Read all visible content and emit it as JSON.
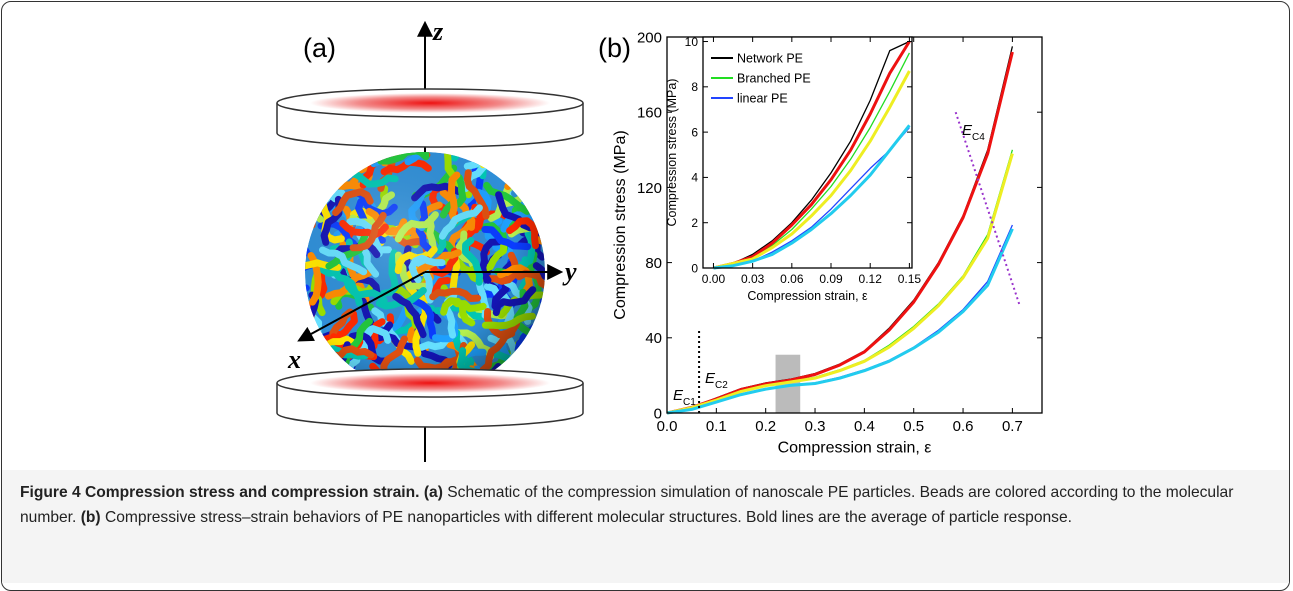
{
  "figure": {
    "panel_a_label": "(a)",
    "panel_b_label": "(b)",
    "axis_z": "z",
    "axis_y": "y",
    "axis_x": "x"
  },
  "caption": {
    "title": "Figure 4 Compression stress and compression strain.",
    "parts": [
      {
        "label": "(a)",
        "text": "Schematic of the compression simulation of nanoscale PE particles. Beads are colored according to the molecular number."
      },
      {
        "label": "(b)",
        "text": "Compressive stress–strain behaviors of PE nanoparticles with different molecular structures. Bold lines are the average of particle response."
      }
    ]
  },
  "chart_data": [
    {
      "type": "line",
      "xlabel": "Compression strain, ε",
      "ylabel": "Compression stress (MPa)",
      "x": [
        0,
        0.05,
        0.1,
        0.15,
        0.2,
        0.25,
        0.3,
        0.35,
        0.4,
        0.45,
        0.5,
        0.55,
        0.6,
        0.65,
        0.7
      ],
      "series": [
        {
          "color": "#000000",
          "values": [
            0,
            3,
            8,
            13,
            16,
            18,
            21,
            26,
            33,
            45,
            60,
            80,
            105,
            140,
            195
          ]
        },
        {
          "color": "#22dd22",
          "values": [
            0,
            3,
            7,
            12,
            15,
            17,
            19,
            23,
            28,
            36,
            46,
            58,
            73,
            95,
            140
          ]
        },
        {
          "color": "#2244ff",
          "values": [
            0,
            2,
            6,
            10,
            13,
            15,
            16,
            19,
            23,
            28,
            35,
            44,
            55,
            70,
            100
          ]
        },
        {
          "color": "#ee1111",
          "width": 3,
          "values": [
            0,
            3,
            7.5,
            12.5,
            15.5,
            17.5,
            20.5,
            25.5,
            32.5,
            44,
            59,
            79,
            104,
            138,
            192
          ]
        },
        {
          "color": "#eeee22",
          "width": 3,
          "values": [
            0,
            2.8,
            6.8,
            11.5,
            14.5,
            16.5,
            18.5,
            22.5,
            27.5,
            35,
            45,
            57,
            72,
            93,
            138
          ]
        },
        {
          "color": "#22ccee",
          "width": 3,
          "values": [
            0,
            1.9,
            5.8,
            9.8,
            12.7,
            14.7,
            15.7,
            18.5,
            22.5,
            27.5,
            34.5,
            43,
            54,
            68,
            98
          ]
        }
      ],
      "xlim": [
        0,
        0.76
      ],
      "ylim": [
        0,
        200
      ],
      "xticks": [
        {
          "value": 0,
          "label": "0.0"
        },
        0.1,
        0.2,
        0.3,
        0.4,
        0.5,
        0.6,
        0.7
      ],
      "yticks": [
        0,
        40,
        80,
        120,
        160,
        200
      ],
      "shaded_region": {
        "x": [
          0.22,
          0.27
        ],
        "y": [
          0,
          31
        ],
        "color": "#bbbbbb"
      },
      "dotted_lines": [
        {
          "x": [
            0.065,
            0.065
          ],
          "y": [
            0,
            45
          ],
          "color": "#000000"
        },
        {
          "x": [
            0.585,
            0.715
          ],
          "y": [
            160,
            57
          ],
          "color": "#9933cc"
        }
      ],
      "annotations": [
        {
          "symbol": "E",
          "subscript": "C1"
        },
        {
          "symbol": "E",
          "subscript": "C2"
        },
        {
          "symbol": "E",
          "subscript": "C4"
        }
      ]
    },
    {
      "type": "line",
      "xlabel": "Compression strain, ε",
      "ylabel": "Compression stress (MPa)",
      "x": [
        0,
        0.015,
        0.03,
        0.045,
        0.06,
        0.075,
        0.09,
        0.105,
        0.12,
        0.135,
        0.15
      ],
      "series": [
        {
          "name": "Network PE",
          "color": "#000000",
          "values": [
            0,
            0.2,
            0.6,
            1.2,
            2.0,
            3.0,
            4.2,
            5.6,
            7.4,
            9.6,
            10
          ]
        },
        {
          "name": "Branched PE",
          "color": "#22dd22",
          "values": [
            0,
            0.2,
            0.5,
            1.0,
            1.7,
            2.6,
            3.6,
            4.8,
            6.2,
            7.8,
            9.5
          ]
        },
        {
          "name": "linear PE",
          "color": "#2244ff",
          "values": [
            0,
            0.1,
            0.3,
            0.7,
            1.2,
            1.8,
            2.6,
            3.5,
            4.4,
            5.2,
            6.2
          ]
        },
        {
          "color": "#ee1111",
          "width": 3,
          "values": [
            0,
            0.2,
            0.5,
            1.1,
            1.9,
            2.8,
            3.9,
            5.2,
            6.8,
            8.6,
            10
          ]
        },
        {
          "color": "#eeee22",
          "width": 3,
          "values": [
            0,
            0.2,
            0.4,
            0.9,
            1.5,
            2.3,
            3.2,
            4.3,
            5.6,
            7.1,
            8.7
          ]
        },
        {
          "color": "#22ccee",
          "width": 3,
          "values": [
            0,
            0.1,
            0.3,
            0.6,
            1.1,
            1.7,
            2.4,
            3.2,
            4.1,
            5.2,
            6.3
          ]
        }
      ],
      "xlim": [
        -0.008,
        0.152
      ],
      "ylim": [
        0,
        10.2
      ],
      "xticks": [
        {
          "value": 0,
          "label": "0.00"
        },
        0.03,
        0.06,
        0.09,
        0.12,
        0.15
      ],
      "yticks": [
        0,
        2,
        4,
        6,
        8,
        10
      ],
      "legend": "upper left"
    }
  ]
}
